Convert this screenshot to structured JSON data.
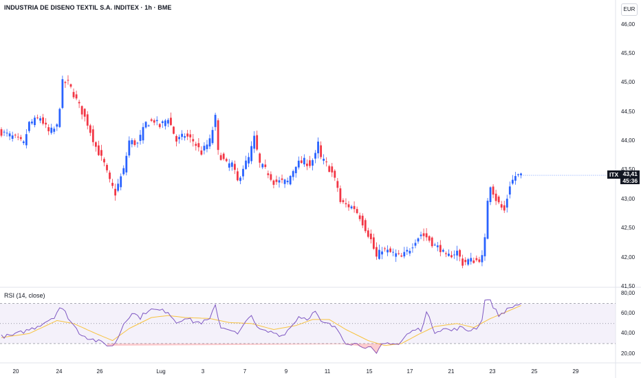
{
  "header": {
    "title": "INDUSTRIA DE DISENO TEXTIL S.A. INDITEX · 1h · BME",
    "currency": "EUR"
  },
  "price_scale": {
    "ticks": [
      "46,00",
      "45,50",
      "45,00",
      "44,50",
      "44,00",
      "43,50",
      "43,00",
      "42,50",
      "42,00",
      "41,50"
    ],
    "tick_values": [
      46.0,
      45.5,
      45.0,
      44.5,
      44.0,
      43.5,
      43.0,
      42.5,
      42.0,
      41.5
    ]
  },
  "last_price": {
    "symbol": "ITX",
    "price": "43,41",
    "countdown": "45:36"
  },
  "rsi": {
    "label": "RSI (14, close)",
    "ticks": [
      "80,00",
      "60,00",
      "40,00",
      "20,00"
    ],
    "tick_values": [
      80,
      60,
      40,
      20
    ],
    "overbought": 70,
    "middle": 50,
    "oversold": 30
  },
  "time_axis": {
    "labels": [
      "20",
      "24",
      "26",
      "Lug",
      "3",
      "7",
      "9",
      "11",
      "15",
      "17",
      "21",
      "23",
      "25",
      "29"
    ]
  },
  "colors": {
    "up": "#2962ff",
    "down": "#f23645",
    "rsi_line": "#7e57c2",
    "rsi_ma": "#f7c341",
    "rsi_band": "#ede7f6"
  },
  "chart_data": {
    "type": "candlestick",
    "symbol": "ITX",
    "interval": "1h",
    "ylim": [
      41.5,
      46.0
    ],
    "anchors": [
      [
        0,
        44.15
      ],
      [
        5,
        44.05
      ],
      [
        8,
        43.95
      ],
      [
        10,
        44.3
      ],
      [
        14,
        44.4
      ],
      [
        17,
        44.15
      ],
      [
        19,
        44.2
      ],
      [
        20,
        44.25
      ],
      [
        21,
        44.6
      ],
      [
        22,
        45.0
      ],
      [
        24,
        45.0
      ],
      [
        28,
        44.6
      ],
      [
        31,
        44.3
      ],
      [
        34,
        43.9
      ],
      [
        37,
        43.6
      ],
      [
        39,
        43.3
      ],
      [
        41,
        43.1
      ],
      [
        42,
        43.25
      ],
      [
        44,
        43.5
      ],
      [
        46,
        44.0
      ],
      [
        49,
        43.95
      ],
      [
        52,
        44.3
      ],
      [
        55,
        44.35
      ],
      [
        57,
        44.25
      ],
      [
        60,
        44.4
      ],
      [
        63,
        44.0
      ],
      [
        66,
        44.1
      ],
      [
        69,
        44.0
      ],
      [
        72,
        43.8
      ],
      [
        75,
        44.0
      ],
      [
        77,
        44.4
      ],
      [
        78,
        43.8
      ],
      [
        81,
        43.6
      ],
      [
        83,
        43.6
      ],
      [
        85,
        43.3
      ],
      [
        87,
        43.55
      ],
      [
        89,
        43.7
      ],
      [
        91,
        44.05
      ],
      [
        93,
        43.6
      ],
      [
        96,
        43.45
      ],
      [
        98,
        43.3
      ],
      [
        100,
        43.3
      ],
      [
        103,
        43.3
      ],
      [
        106,
        43.6
      ],
      [
        109,
        43.65
      ],
      [
        111,
        43.6
      ],
      [
        113,
        43.75
      ],
      [
        114,
        43.95
      ],
      [
        115,
        43.7
      ],
      [
        117,
        43.6
      ],
      [
        119,
        43.45
      ],
      [
        121,
        43.2
      ],
      [
        122,
        42.95
      ],
      [
        124,
        42.9
      ],
      [
        127,
        42.85
      ],
      [
        129,
        42.7
      ],
      [
        131,
        42.5
      ],
      [
        133,
        42.3
      ],
      [
        135,
        42.0
      ],
      [
        137,
        42.15
      ],
      [
        139,
        42.1
      ],
      [
        142,
        42.05
      ],
      [
        144,
        42.0
      ],
      [
        147,
        42.15
      ],
      [
        149,
        42.3
      ],
      [
        151,
        42.4
      ],
      [
        153,
        42.35
      ],
      [
        156,
        42.2
      ],
      [
        158,
        42.15
      ],
      [
        160,
        42.0
      ],
      [
        162,
        42.05
      ],
      [
        164,
        42.1
      ],
      [
        166,
        41.9
      ],
      [
        168,
        41.95
      ],
      [
        171,
        41.95
      ],
      [
        173,
        42.0
      ],
      [
        174,
        42.3
      ],
      [
        175,
        43.0
      ],
      [
        176,
        43.25
      ],
      [
        178,
        43.0
      ],
      [
        180,
        42.85
      ],
      [
        181,
        42.8
      ],
      [
        183,
        43.25
      ],
      [
        185,
        43.4
      ],
      [
        187,
        43.41
      ]
    ],
    "rsi_anchors": [
      [
        0,
        37
      ],
      [
        4,
        38
      ],
      [
        8,
        42
      ],
      [
        12,
        46
      ],
      [
        16,
        52
      ],
      [
        19,
        57
      ],
      [
        21,
        66
      ],
      [
        23,
        61
      ],
      [
        25,
        52
      ],
      [
        28,
        41
      ],
      [
        31,
        36
      ],
      [
        34,
        33
      ],
      [
        37,
        30
      ],
      [
        40,
        27
      ],
      [
        42,
        36
      ],
      [
        44,
        50
      ],
      [
        47,
        61
      ],
      [
        50,
        56
      ],
      [
        53,
        64
      ],
      [
        57,
        63
      ],
      [
        60,
        62
      ],
      [
        63,
        51
      ],
      [
        66,
        56
      ],
      [
        69,
        52
      ],
      [
        72,
        51
      ],
      [
        75,
        54
      ],
      [
        77,
        68
      ],
      [
        79,
        46
      ],
      [
        82,
        45
      ],
      [
        85,
        39
      ],
      [
        88,
        51
      ],
      [
        90,
        60
      ],
      [
        92,
        45
      ],
      [
        95,
        42
      ],
      [
        98,
        41
      ],
      [
        101,
        38
      ],
      [
        104,
        46
      ],
      [
        107,
        57
      ],
      [
        110,
        55
      ],
      [
        113,
        62
      ],
      [
        115,
        51
      ],
      [
        118,
        49
      ],
      [
        121,
        44
      ],
      [
        124,
        31
      ],
      [
        127,
        30
      ],
      [
        130,
        28
      ],
      [
        133,
        25
      ],
      [
        135,
        19
      ],
      [
        137,
        29
      ],
      [
        140,
        31
      ],
      [
        143,
        29
      ],
      [
        146,
        39
      ],
      [
        149,
        44
      ],
      [
        151,
        44
      ],
      [
        153,
        61
      ],
      [
        156,
        42
      ],
      [
        159,
        45
      ],
      [
        162,
        43
      ],
      [
        165,
        46
      ],
      [
        168,
        43
      ],
      [
        171,
        46
      ],
      [
        173,
        53
      ],
      [
        174,
        75
      ],
      [
        176,
        72
      ],
      [
        179,
        58
      ],
      [
        181,
        62
      ],
      [
        184,
        67
      ],
      [
        187,
        70
      ]
    ],
    "rsi_ma_anchors": [
      [
        0,
        36
      ],
      [
        10,
        40
      ],
      [
        20,
        53
      ],
      [
        26,
        50
      ],
      [
        34,
        40
      ],
      [
        40,
        33
      ],
      [
        46,
        45
      ],
      [
        54,
        56
      ],
      [
        60,
        58
      ],
      [
        66,
        56
      ],
      [
        75,
        55
      ],
      [
        82,
        51
      ],
      [
        90,
        50
      ],
      [
        98,
        44
      ],
      [
        106,
        48
      ],
      [
        112,
        54
      ],
      [
        118,
        54
      ],
      [
        124,
        44
      ],
      [
        132,
        33
      ],
      [
        138,
        28
      ],
      [
        144,
        30
      ],
      [
        150,
        39
      ],
      [
        156,
        47
      ],
      [
        164,
        50
      ],
      [
        170,
        46
      ],
      [
        176,
        55
      ],
      [
        182,
        62
      ],
      [
        187,
        68
      ]
    ]
  }
}
